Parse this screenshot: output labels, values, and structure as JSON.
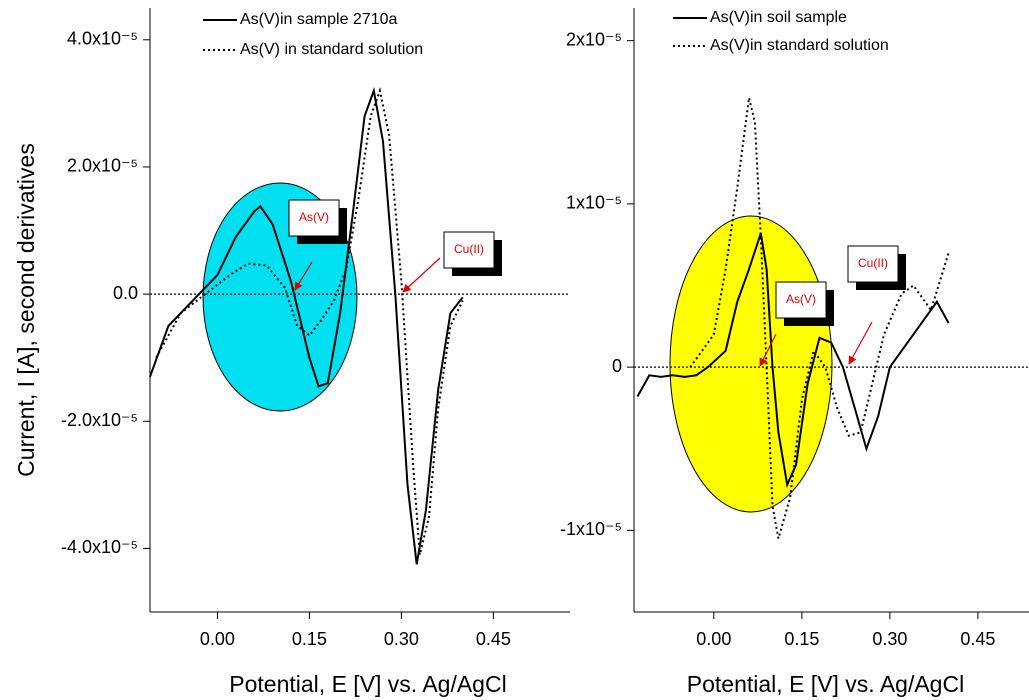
{
  "chart_data": [
    {
      "type": "line",
      "y_label": "Current, I [A], second derivatives",
      "x_label": "Potential, E [V] vs. Ag/AgCl",
      "xlim": [
        -0.11,
        0.575
      ],
      "ylim": [
        -5e-05,
        4.5e-05
      ],
      "xticks": [
        {
          "value": 0,
          "label": "0.00"
        },
        0.15,
        {
          "value": 0.3,
          "label": "0.30"
        },
        0.45
      ],
      "yticks": [
        {
          "value": 4e-05,
          "label": "4.0x10⁻⁵"
        },
        {
          "value": 2e-05,
          "label": "2.0x10⁻⁵"
        },
        {
          "value": 0,
          "label": "0.0"
        },
        {
          "value": -2e-05,
          "label": "-2.0x10⁻⁵"
        },
        {
          "value": -4e-05,
          "label": "-4.0x10⁻⁵"
        }
      ],
      "annotations": [
        "As(V)",
        "Cu(II)"
      ],
      "series": [
        {
          "name": "As(V)in sample 2710a",
          "color": "#000000",
          "style": "solid",
          "x": [
            -0.11,
            -0.08,
            -0.05,
            -0.03,
            0.0,
            0.03,
            0.06,
            0.07,
            0.09,
            0.12,
            0.15,
            0.165,
            0.18,
            0.2,
            0.22,
            0.24,
            0.255,
            0.27,
            0.29,
            0.31,
            0.325,
            0.34,
            0.36,
            0.38,
            0.4
          ],
          "values": [
            -1.3e-05,
            -5e-06,
            -2e-06,
            0,
            3e-06,
            9e-06,
            1.3e-05,
            1.38e-05,
            1.1e-05,
            2e-06,
            -1e-05,
            -1.45e-05,
            -1.4e-05,
            -3e-06,
            1.2e-05,
            2.8e-05,
            3.2e-05,
            2.4e-05,
            0,
            -3e-05,
            -4.25e-05,
            -3.4e-05,
            -1.5e-05,
            -3e-06,
            -5e-07
          ]
        },
        {
          "name": "As(V) in standard solution",
          "color": "#000000",
          "style": "dotted",
          "x": [
            -0.1,
            -0.06,
            -0.02,
            0.02,
            0.05,
            0.08,
            0.11,
            0.13,
            0.15,
            0.17,
            0.19,
            0.21,
            0.23,
            0.25,
            0.265,
            0.28,
            0.3,
            0.32,
            0.33,
            0.345,
            0.36,
            0.38,
            0.4
          ],
          "values": [
            -1e-05,
            -3e-06,
            0,
            3e-06,
            4.8e-06,
            4.5e-06,
            1e-06,
            -5e-06,
            -6.5e-06,
            -4e-06,
            -1e-06,
            4e-06,
            1.5e-05,
            2.8e-05,
            3.2e-05,
            2.5e-05,
            2e-06,
            -2.8e-05,
            -4.1e-05,
            -3.5e-05,
            -1.8e-05,
            -5e-06,
            -1e-06
          ]
        }
      ]
    },
    {
      "type": "line",
      "x_label": "Potential, E [V] vs. Ag/AgCl",
      "xlim": [
        -0.136,
        0.537
      ],
      "ylim": [
        -1.5e-05,
        2.2e-05
      ],
      "xticks": [
        {
          "value": 0,
          "label": "0.00"
        },
        0.15,
        {
          "value": 0.3,
          "label": "0.30"
        },
        0.45
      ],
      "yticks": [
        {
          "value": 2e-05,
          "label": "2x10⁻⁵"
        },
        {
          "value": 1e-05,
          "label": "1x10⁻⁵"
        },
        0,
        {
          "value": -1e-05,
          "label": "-1x10⁻⁵"
        }
      ],
      "annotations": [
        "Cu(II)",
        "As(V)"
      ],
      "series": [
        {
          "name": "As(V)in soil sample",
          "color": "#000000",
          "style": "solid",
          "x": [
            -0.13,
            -0.11,
            -0.09,
            -0.07,
            -0.05,
            -0.03,
            -0.01,
            0.02,
            0.04,
            0.06,
            0.08,
            0.09,
            0.1,
            0.11,
            0.125,
            0.14,
            0.16,
            0.18,
            0.2,
            0.22,
            0.24,
            0.26,
            0.28,
            0.3,
            0.32,
            0.35,
            0.38,
            0.4
          ],
          "values": [
            -1.8e-06,
            -5e-07,
            -6e-07,
            -5e-07,
            -6e-07,
            -5e-07,
            0,
            1e-06,
            4e-06,
            6e-06,
            8.2e-06,
            6e-06,
            0,
            -4e-06,
            -7.2e-06,
            -6e-06,
            -1e-06,
            1.8e-06,
            1.5e-06,
            0,
            -2.5e-06,
            -5e-06,
            -3e-06,
            0,
            1e-06,
            2.5e-06,
            4e-06,
            2.7e-06
          ]
        },
        {
          "name": "As(V)in standard solution",
          "color": "#000000",
          "style": "dotted",
          "x": [
            -0.04,
            -0.02,
            0.0,
            0.02,
            0.04,
            0.06,
            0.07,
            0.08,
            0.09,
            0.1,
            0.11,
            0.13,
            0.15,
            0.17,
            0.19,
            0.21,
            0.23,
            0.25,
            0.27,
            0.29,
            0.32,
            0.34,
            0.37,
            0.4
          ],
          "values": [
            0,
            1e-06,
            2e-06,
            6e-06,
            1.1e-05,
            1.65e-05,
            1.5e-05,
            8e-06,
            0,
            -8.5e-06,
            -1.05e-05,
            -8e-06,
            -2e-06,
            1e-06,
            0,
            -2.5e-06,
            -4.2e-06,
            -4e-06,
            -1e-06,
            2e-06,
            4.5e-06,
            5e-06,
            3.5e-06,
            7e-06
          ]
        }
      ]
    }
  ]
}
